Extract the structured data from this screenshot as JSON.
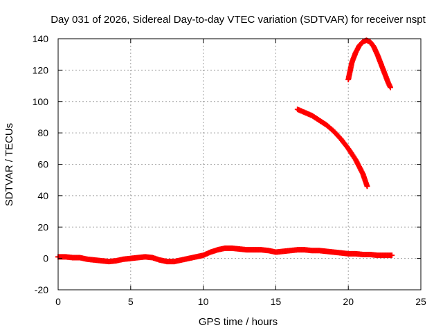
{
  "chart_data": {
    "type": "scatter",
    "title": "Day 031 of 2026, Sidereal Day-to-day VTEC variation (SDTVAR) for receiver nspt",
    "xlabel": "GPS time / hours",
    "ylabel": "SDTVAR / TECUs",
    "xlim": [
      0,
      25
    ],
    "ylim": [
      -20,
      140
    ],
    "xticks": [
      0,
      5,
      10,
      15,
      20,
      25
    ],
    "yticks": [
      -20,
      0,
      20,
      40,
      60,
      80,
      100,
      120,
      140
    ],
    "grid": true,
    "legend": "none",
    "marker": "plus",
    "color": "#ff0000",
    "series": [
      {
        "x": [
          0.0,
          0.5,
          1.0,
          1.5,
          2.0,
          2.5,
          3.0,
          3.5,
          4.0,
          4.5,
          5.0,
          5.5,
          6.0,
          6.5,
          7.0,
          7.5,
          8.0,
          8.5,
          9.0,
          9.5,
          10.0,
          10.5,
          11.0,
          11.5,
          12.0,
          12.5,
          13.0,
          13.5,
          14.0,
          14.5,
          15.0,
          15.5,
          16.0,
          16.5,
          17.0,
          17.5,
          18.0,
          18.5,
          19.0,
          19.5,
          20.0,
          20.5,
          21.0,
          21.5,
          22.0,
          22.5,
          23.0
        ],
        "y": [
          1,
          1,
          0.5,
          0.5,
          -0.5,
          -1,
          -1.5,
          -2,
          -1.5,
          -0.5,
          0,
          0.5,
          1,
          0.5,
          -1,
          -2,
          -2,
          -1,
          0,
          1,
          2,
          4,
          5.5,
          6.5,
          6.5,
          6,
          5.5,
          5.5,
          5.5,
          5,
          4,
          4.5,
          5,
          5.5,
          5.5,
          5,
          5,
          4.5,
          4,
          3.5,
          3,
          3,
          2.5,
          2.5,
          2,
          2,
          2
        ]
      },
      {
        "x": [
          16.5,
          17.0,
          17.5,
          18.0,
          18.5,
          19.0,
          19.5,
          20.0,
          20.5,
          21.0,
          21.3
        ],
        "y": [
          95,
          93,
          91,
          88,
          85,
          81,
          76,
          70,
          63,
          54,
          46
        ]
      },
      {
        "x": [
          20.0,
          20.25,
          20.5,
          20.75,
          21.0,
          21.25,
          21.5,
          21.75,
          22.0,
          22.25,
          22.5,
          22.75,
          22.9
        ],
        "y": [
          114,
          125,
          131,
          135.5,
          138,
          139,
          138,
          135,
          130,
          124,
          118,
          112,
          109
        ]
      }
    ]
  }
}
